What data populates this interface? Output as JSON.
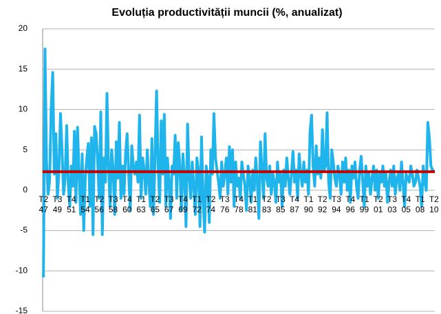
{
  "chart_data": {
    "type": "line",
    "title": "Evoluția productivității muncii (%, anualizat)",
    "categories": [
      "T2 47",
      null,
      null,
      null,
      null,
      null,
      null,
      null,
      null,
      "T3 49",
      null,
      null,
      null,
      null,
      null,
      null,
      null,
      null,
      "T4 51",
      null,
      null,
      null,
      null,
      null,
      null,
      null,
      null,
      "T1 54",
      null,
      null,
      null,
      null,
      null,
      null,
      null,
      null,
      "T2 56",
      null,
      null,
      null,
      null,
      null,
      null,
      null,
      null,
      "T3 58",
      null,
      null,
      null,
      null,
      null,
      null,
      null,
      null,
      "T4 60",
      null,
      null,
      null,
      null,
      null,
      null,
      null,
      null,
      "T1 63",
      null,
      null,
      null,
      null,
      null,
      null,
      null,
      null,
      "T2 65",
      null,
      null,
      null,
      null,
      null,
      null,
      null,
      null,
      "T3 67",
      null,
      null,
      null,
      null,
      null,
      null,
      null,
      null,
      "T4 69",
      null,
      null,
      null,
      null,
      null,
      null,
      null,
      null,
      "T1 72",
      null,
      null,
      null,
      null,
      null,
      null,
      null,
      null,
      "T2 74",
      null,
      null,
      null,
      null,
      null,
      null,
      null,
      null,
      "T3 76",
      null,
      null,
      null,
      null,
      null,
      null,
      null,
      null,
      "T4 78",
      null,
      null,
      null,
      null,
      null,
      null,
      null,
      null,
      "T1 81",
      null,
      null,
      null,
      null,
      null,
      null,
      null,
      null,
      "T2 83",
      null,
      null,
      null,
      null,
      null,
      null,
      null,
      null,
      "T3 85",
      null,
      null,
      null,
      null,
      null,
      null,
      null,
      null,
      "T4 87",
      null,
      null,
      null,
      null,
      null,
      null,
      null,
      null,
      "T1 90",
      null,
      null,
      null,
      null,
      null,
      null,
      null,
      null,
      "T2 92",
      null,
      null,
      null,
      null,
      null,
      null,
      null,
      null,
      "T3 94",
      null,
      null,
      null,
      null,
      null,
      null,
      null,
      null,
      "T4 96",
      null,
      null,
      null,
      null,
      null,
      null,
      null,
      null,
      "T1 99",
      null,
      null,
      null,
      null,
      null,
      null,
      null,
      null,
      "T2 01",
      null,
      null,
      null,
      null,
      null,
      null,
      null,
      null,
      "T3 03",
      null,
      null,
      null,
      null,
      null,
      null,
      null,
      null,
      "T4 05",
      null,
      null,
      null,
      null,
      null,
      null,
      null,
      null,
      "T1 08",
      null,
      null,
      null,
      null,
      null,
      null,
      null,
      null,
      "T2 10"
    ],
    "values": [
      -10.8,
      17.5,
      3.5,
      -0.5,
      1.2,
      10.2,
      14.6,
      2.0,
      7.0,
      -1.0,
      2.5,
      9.5,
      5.0,
      -0.5,
      1.5,
      8.0,
      1.0,
      -2.0,
      3.0,
      0.5,
      7.3,
      -1.5,
      7.8,
      2.0,
      -3.0,
      4.5,
      -5.0,
      1.5,
      4.0,
      5.8,
      -2.0,
      6.5,
      -5.5,
      7.9,
      7.0,
      3.5,
      -1.0,
      9.7,
      -5.5,
      4.0,
      1.0,
      12.0,
      3.0,
      -2.0,
      5.0,
      2.5,
      -3.0,
      6.0,
      1.5,
      8.4,
      -1.0,
      3.0,
      -0.5,
      4.5,
      7.0,
      2.0,
      -2.5,
      5.5,
      3.0,
      2.0,
      3.5,
      1.0,
      9.3,
      -1.0,
      4.0,
      2.5,
      -0.5,
      5.0,
      1.0,
      -2.0,
      6.4,
      -3.0,
      4.0,
      12.3,
      3.0,
      -1.5,
      8.6,
      2.0,
      9.4,
      -2.0,
      4.0,
      1.0,
      -3.5,
      3.0,
      2.0,
      6.8,
      -1.0,
      5.9,
      3.0,
      -2.5,
      4.5,
      1.5,
      -4.5,
      8.2,
      2.0,
      -1.0,
      3.5,
      0.5,
      -3.0,
      4.0,
      2.5,
      -4.5,
      6.6,
      -1.0,
      -5.2,
      3.0,
      1.5,
      -4.0,
      5.0,
      2.0,
      9.5,
      4.0,
      2.5,
      1.0,
      -1.0,
      3.5,
      0.5,
      2.0,
      4.0,
      -0.5,
      5.4,
      1.0,
      5.0,
      -2.0,
      3.5,
      0.5,
      1.5,
      -1.0,
      3.5,
      2.0,
      0.5,
      -2.5,
      3.0,
      1.5,
      -1.5,
      2.5,
      0.0,
      4.0,
      1.0,
      -3.5,
      6.0,
      2.5,
      -1.0,
      7.0,
      1.5,
      0.5,
      3.0,
      -0.5,
      2.0,
      1.0,
      -1.5,
      3.5,
      1.0,
      2.0,
      -2.0,
      2.5,
      0.5,
      4.0,
      1.5,
      -0.5,
      2.0,
      4.8,
      1.0,
      2.5,
      -1.0,
      4.5,
      2.0,
      0.5,
      3.5,
      1.0,
      2.5,
      -0.5,
      7.3,
      9.3,
      3.0,
      0.5,
      5.5,
      2.0,
      4.0,
      1.5,
      7.5,
      2.5,
      3.0,
      9.6,
      1.0,
      -1.0,
      5.0,
      3.5,
      1.5,
      0.5,
      3.0,
      2.0,
      -0.5,
      3.5,
      1.0,
      4.0,
      0.0,
      2.5,
      -1.5,
      3.0,
      1.5,
      3.5,
      0.5,
      -1.0,
      2.5,
      4.2,
      1.0,
      -2.0,
      3.0,
      0.5,
      2.0,
      -0.5,
      1.5,
      3.0,
      0.0,
      2.5,
      -1.0,
      2.0,
      1.0,
      3.0,
      0.5,
      2.0,
      -1.5,
      1.0,
      2.5,
      0.5,
      3.0,
      -0.5,
      1.5,
      2.0,
      0.0,
      3.5,
      1.0,
      -2.0,
      2.0,
      1.5,
      1.0,
      3.0,
      2.0,
      0.5,
      1.0,
      2.5,
      1.5,
      0.5,
      -2.0,
      3.0,
      1.0,
      0.0,
      8.4,
      6.5,
      3.0,
      2.5,
      2.6
    ],
    "color": "#1fb4ec",
    "mean_line": {
      "value": 2.3,
      "color": "#c00000"
    },
    "ylim": [
      -15,
      20
    ],
    "yticks": [
      -15,
      -10,
      -5,
      0,
      5,
      10,
      15,
      20
    ],
    "grid": true
  }
}
